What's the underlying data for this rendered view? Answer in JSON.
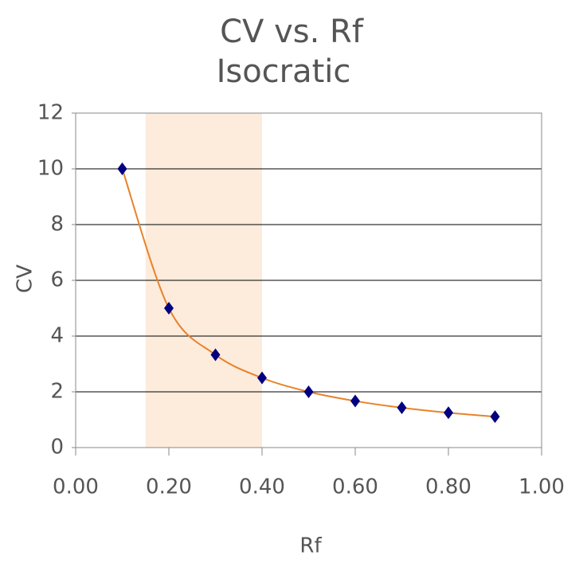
{
  "chart_data": {
    "type": "scatter",
    "title": "CV vs. Rf",
    "subtitle": "Isocratic",
    "x_label": "Rf",
    "y_label": "CV",
    "x": [
      0.1,
      0.2,
      0.3,
      0.4,
      0.5,
      0.6,
      0.7,
      0.8,
      0.9
    ],
    "series": [
      {
        "name": "CV",
        "marker_color": "#000080",
        "color": "#e8832a",
        "values": [
          10,
          5,
          3.33,
          2.5,
          2,
          1.67,
          1.43,
          1.25,
          1.11
        ]
      }
    ],
    "xlim": [
      0,
      1
    ],
    "ylim": [
      0,
      12
    ],
    "xticks": [
      {
        "value": 0,
        "label": "0.00"
      },
      {
        "value": 0.2,
        "label": "0.20"
      },
      {
        "value": 0.4,
        "label": "0.40"
      },
      {
        "value": 0.6,
        "label": "0.60"
      },
      {
        "value": 0.8,
        "label": "0.80"
      },
      {
        "value": 1,
        "label": "1.00"
      }
    ],
    "yticks": [
      0,
      2,
      4,
      6,
      8,
      10,
      12
    ],
    "grid": true,
    "highlight_x": [
      0.15,
      0.4
    ],
    "highlight_color": "#fdebdc"
  }
}
